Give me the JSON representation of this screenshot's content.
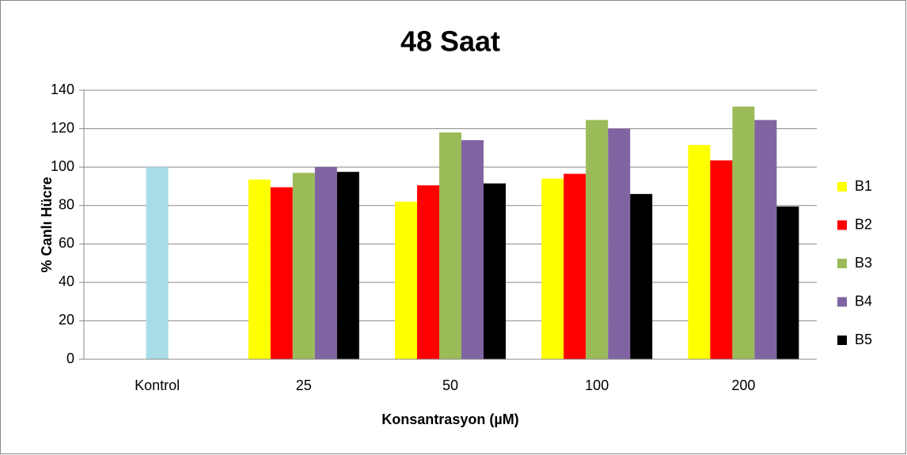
{
  "chart_data": {
    "type": "bar",
    "title": "48 Saat",
    "x_label": "Konsantrasyon (µM)",
    "y_label": "% Canlı Hücre",
    "categories": [
      "Kontrol",
      "25",
      "50",
      "100",
      "200"
    ],
    "control_values": [
      100,
      null,
      null,
      null,
      null
    ],
    "control_color": "#a8dde8",
    "series": [
      {
        "name": "B1",
        "color": "#ffff00",
        "values": [
          null,
          93.5,
          82,
          94,
          111.5
        ]
      },
      {
        "name": "B2",
        "color": "#ff0000",
        "values": [
          null,
          89.5,
          90.5,
          96.5,
          103.5
        ]
      },
      {
        "name": "B3",
        "color": "#9bbb59",
        "values": [
          null,
          97,
          118,
          124.5,
          131.5
        ]
      },
      {
        "name": "B4",
        "color": "#8064a2",
        "values": [
          null,
          100,
          114,
          120,
          124.5
        ]
      },
      {
        "name": "B5",
        "color": "#000000",
        "values": [
          null,
          97.5,
          91.5,
          86,
          79.5
        ]
      }
    ],
    "ylim": [
      0,
      140
    ],
    "yticks": [
      0,
      20,
      40,
      60,
      80,
      100,
      120,
      140
    ],
    "grid": true,
    "legend": "right"
  }
}
